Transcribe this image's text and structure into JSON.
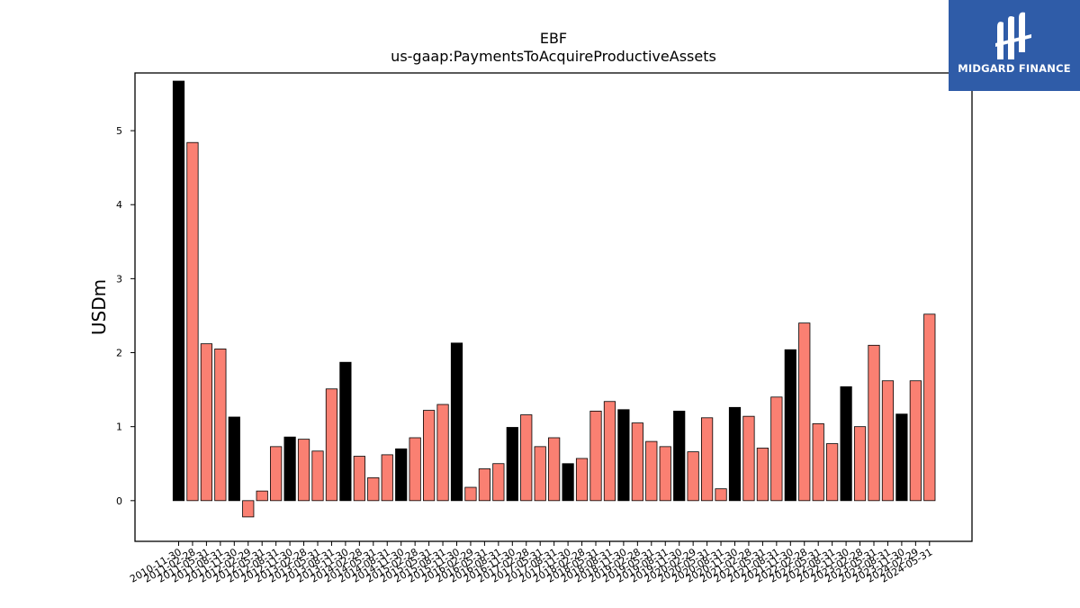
{
  "chart_data": {
    "type": "bar",
    "title": "EBF",
    "subtitle": "us-gaap:PaymentsToAcquireProductiveAssets",
    "ylabel": "USDm",
    "xlabel": "",
    "ylim": [
      -0.55,
      5.78
    ],
    "yticks": [
      0,
      1,
      2,
      3,
      4,
      5
    ],
    "categories": [
      "2010-11-30",
      "2011-02-28",
      "2011-05-31",
      "2011-08-31",
      "2011-11-30",
      "2012-02-29",
      "2012-05-31",
      "2012-08-31",
      "2012-11-30",
      "2013-02-28",
      "2013-05-31",
      "2013-08-31",
      "2013-11-30",
      "2014-02-28",
      "2014-05-31",
      "2014-08-31",
      "2014-11-30",
      "2015-02-28",
      "2015-05-31",
      "2015-08-31",
      "2015-11-30",
      "2016-02-29",
      "2016-05-31",
      "2016-08-31",
      "2016-11-30",
      "2017-02-28",
      "2017-05-31",
      "2017-08-31",
      "2017-11-30",
      "2018-02-28",
      "2018-05-31",
      "2018-08-31",
      "2018-11-30",
      "2019-02-28",
      "2019-05-31",
      "2019-08-31",
      "2019-11-30",
      "2020-02-29",
      "2020-05-31",
      "2020-08-31",
      "2020-11-30",
      "2021-02-28",
      "2021-05-31",
      "2021-08-31",
      "2021-11-30",
      "2022-02-28",
      "2022-05-31",
      "2022-08-31",
      "2022-11-30",
      "2023-02-28",
      "2023-05-31",
      "2023-08-31",
      "2023-11-30",
      "2024-02-29",
      "2024-05-31"
    ],
    "values": [
      5.67,
      4.84,
      2.12,
      2.05,
      1.13,
      -0.22,
      0.13,
      0.73,
      0.86,
      0.83,
      0.67,
      1.51,
      1.87,
      0.6,
      0.31,
      0.62,
      0.7,
      0.85,
      1.22,
      1.3,
      2.13,
      0.18,
      0.43,
      0.5,
      0.99,
      1.16,
      0.73,
      0.85,
      0.5,
      0.57,
      1.21,
      1.34,
      1.23,
      1.05,
      0.8,
      0.73,
      1.21,
      0.66,
      1.12,
      0.16,
      1.26,
      1.14,
      0.71,
      1.4,
      2.04,
      2.4,
      1.04,
      0.77,
      1.54,
      1.0,
      2.1,
      1.62,
      1.17,
      1.62,
      2.52
    ],
    "fiscal_year_end": [
      true,
      false,
      false,
      false,
      true,
      false,
      false,
      false,
      true,
      false,
      false,
      false,
      true,
      false,
      false,
      false,
      true,
      false,
      false,
      false,
      true,
      false,
      false,
      false,
      true,
      false,
      false,
      false,
      true,
      false,
      false,
      false,
      true,
      false,
      false,
      false,
      true,
      false,
      false,
      false,
      true,
      false,
      false,
      false,
      true,
      false,
      false,
      false,
      true,
      false,
      false,
      false,
      true,
      false,
      false
    ],
    "colors": {
      "annual": "#000000",
      "quarterly": "#fa8072",
      "edge": "#000000"
    },
    "grid": false,
    "legend": "none"
  },
  "logo": {
    "text": "MIDGARD FINANCE",
    "background": "#2f5ca8"
  }
}
